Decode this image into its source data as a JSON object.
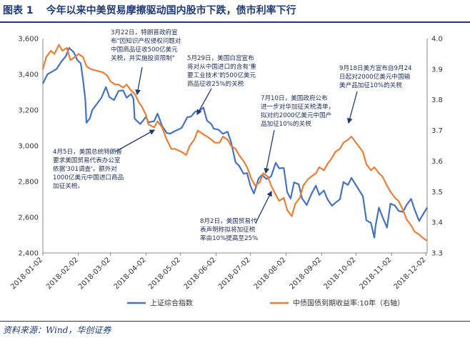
{
  "header": {
    "figure_label": "图表 1",
    "title": "今年以来中美贸易摩擦驱动国内股市下跌，债市利率下行"
  },
  "footer": {
    "source": "资料来源：Wind，华创证券"
  },
  "colors": {
    "stock": "#4472c4",
    "bond": "#ed7d31",
    "title": "#1f3a75",
    "grid": "#d9d9d9"
  },
  "chart_data": {
    "type": "line",
    "title": "",
    "xlabel": "",
    "ylabel_left": "",
    "ylabel_right": "",
    "x_ticks": [
      "2018-01-02",
      "2018-02-02",
      "2018-03-02",
      "2018-04-02",
      "2018-05-02",
      "2018-06-02",
      "2018-07-02",
      "2018-08-02",
      "2018-09-02",
      "2018-10-02",
      "2018-11-02",
      "2018-12-02"
    ],
    "y_left_ticks": [
      "2,400",
      "2,600",
      "2,800",
      "3,000",
      "3,200",
      "3,400",
      "3,600"
    ],
    "y_right_ticks": [
      "3.3",
      "3.4",
      "3.5",
      "3.6",
      "3.7",
      "3.8",
      "3.9",
      "4.0"
    ],
    "ylim_left": [
      2400,
      3600
    ],
    "ylim_right": [
      3.3,
      4.0
    ],
    "grid": false,
    "legend_position": "bottom",
    "series": [
      {
        "name": "上证综合指数",
        "axis": "left",
        "points": [
          [
            "2018-01-02",
            3348
          ],
          [
            "2018-01-06",
            3400
          ],
          [
            "2018-01-10",
            3415
          ],
          [
            "2018-01-14",
            3430
          ],
          [
            "2018-01-18",
            3470
          ],
          [
            "2018-01-22",
            3501
          ],
          [
            "2018-01-25",
            3548
          ],
          [
            "2018-01-29",
            3523
          ],
          [
            "2018-02-01",
            3480
          ],
          [
            "2018-02-04",
            3462
          ],
          [
            "2018-02-06",
            3370
          ],
          [
            "2018-02-08",
            3262
          ],
          [
            "2018-02-09",
            3129
          ],
          [
            "2018-02-12",
            3154
          ],
          [
            "2018-02-14",
            3199
          ],
          [
            "2018-02-22",
            3268
          ],
          [
            "2018-02-26",
            3329
          ],
          [
            "2018-03-01",
            3273
          ],
          [
            "2018-03-05",
            3256
          ],
          [
            "2018-03-09",
            3307
          ],
          [
            "2018-03-13",
            3310
          ],
          [
            "2018-03-16",
            3269
          ],
          [
            "2018-03-20",
            3290
          ],
          [
            "2018-03-22",
            3263
          ],
          [
            "2018-03-23",
            3152
          ],
          [
            "2018-03-26",
            3133
          ],
          [
            "2018-03-28",
            3122
          ],
          [
            "2018-04-02",
            3163
          ],
          [
            "2018-04-04",
            3131
          ],
          [
            "2018-04-09",
            3138
          ],
          [
            "2018-04-12",
            3180
          ],
          [
            "2018-04-16",
            3110
          ],
          [
            "2018-04-20",
            3072
          ],
          [
            "2018-04-23",
            3068
          ],
          [
            "2018-04-27",
            3082
          ],
          [
            "2018-05-03",
            3100
          ],
          [
            "2018-05-08",
            3161
          ],
          [
            "2018-05-11",
            3163
          ],
          [
            "2018-05-15",
            3192
          ],
          [
            "2018-05-18",
            3193
          ],
          [
            "2018-05-22",
            3214
          ],
          [
            "2018-05-25",
            3141
          ],
          [
            "2018-05-29",
            3120
          ],
          [
            "2018-05-31",
            3095
          ],
          [
            "2018-06-04",
            3091
          ],
          [
            "2018-06-08",
            3067
          ],
          [
            "2018-06-12",
            3079
          ],
          [
            "2018-06-15",
            3022
          ],
          [
            "2018-06-19",
            2907
          ],
          [
            "2018-06-22",
            2889
          ],
          [
            "2018-06-26",
            2844
          ],
          [
            "2018-06-29",
            2847
          ],
          [
            "2018-07-02",
            2775
          ],
          [
            "2018-07-05",
            2733
          ],
          [
            "2018-07-09",
            2815
          ],
          [
            "2018-07-12",
            2837
          ],
          [
            "2018-07-16",
            2814
          ],
          [
            "2018-07-20",
            2829
          ],
          [
            "2018-07-24",
            2905
          ],
          [
            "2018-07-27",
            2874
          ],
          [
            "2018-07-31",
            2876
          ],
          [
            "2018-08-03",
            2740
          ],
          [
            "2018-08-06",
            2705
          ],
          [
            "2018-08-09",
            2795
          ],
          [
            "2018-08-13",
            2785
          ],
          [
            "2018-08-16",
            2706
          ],
          [
            "2018-08-20",
            2668
          ],
          [
            "2018-08-24",
            2729
          ],
          [
            "2018-08-28",
            2777
          ],
          [
            "2018-08-31",
            2725
          ],
          [
            "2018-09-04",
            2750
          ],
          [
            "2018-09-07",
            2702
          ],
          [
            "2018-09-11",
            2664
          ],
          [
            "2018-09-14",
            2681
          ],
          [
            "2018-09-18",
            2700
          ],
          [
            "2018-09-21",
            2797
          ],
          [
            "2018-09-25",
            2781
          ],
          [
            "2018-09-28",
            2821
          ],
          [
            "2018-10-08",
            2717
          ],
          [
            "2018-10-11",
            2583
          ],
          [
            "2018-10-15",
            2568
          ],
          [
            "2018-10-18",
            2486
          ],
          [
            "2018-10-19",
            2550
          ],
          [
            "2018-10-22",
            2654
          ],
          [
            "2018-10-25",
            2603
          ],
          [
            "2018-10-29",
            2542
          ],
          [
            "2018-11-01",
            2676
          ],
          [
            "2018-11-05",
            2665
          ],
          [
            "2018-11-08",
            2636
          ],
          [
            "2018-11-12",
            2630
          ],
          [
            "2018-11-15",
            2668
          ],
          [
            "2018-11-19",
            2703
          ],
          [
            "2018-11-22",
            2645
          ],
          [
            "2018-11-26",
            2579
          ],
          [
            "2018-11-28",
            2601
          ],
          [
            "2018-12-03",
            2654
          ]
        ]
      },
      {
        "name": "中债国债到期收益率:10年（右轴）",
        "axis": "right",
        "points": [
          [
            "2018-01-02",
            3.9
          ],
          [
            "2018-01-05",
            3.94
          ],
          [
            "2018-01-09",
            3.96
          ],
          [
            "2018-01-12",
            3.95
          ],
          [
            "2018-01-16",
            3.98
          ],
          [
            "2018-01-19",
            3.96
          ],
          [
            "2018-01-23",
            3.97
          ],
          [
            "2018-01-26",
            3.93
          ],
          [
            "2018-01-30",
            3.94
          ],
          [
            "2018-02-02",
            3.95
          ],
          [
            "2018-02-06",
            3.94
          ],
          [
            "2018-02-09",
            3.91
          ],
          [
            "2018-02-13",
            3.9
          ],
          [
            "2018-02-23",
            3.89
          ],
          [
            "2018-02-27",
            3.88
          ],
          [
            "2018-03-02",
            3.86
          ],
          [
            "2018-03-06",
            3.85
          ],
          [
            "2018-03-09",
            3.85
          ],
          [
            "2018-03-13",
            3.84
          ],
          [
            "2018-03-16",
            3.85
          ],
          [
            "2018-03-20",
            3.83
          ],
          [
            "2018-03-23",
            3.82
          ],
          [
            "2018-03-27",
            3.79
          ],
          [
            "2018-03-29",
            3.78
          ],
          [
            "2018-04-02",
            3.75
          ],
          [
            "2018-04-04",
            3.72
          ],
          [
            "2018-04-09",
            3.71
          ],
          [
            "2018-04-12",
            3.73
          ],
          [
            "2018-04-16",
            3.71
          ],
          [
            "2018-04-18",
            3.69
          ],
          [
            "2018-04-20",
            3.67
          ],
          [
            "2018-04-24",
            3.64
          ],
          [
            "2018-04-27",
            3.64
          ],
          [
            "2018-05-03",
            3.63
          ],
          [
            "2018-05-07",
            3.62
          ],
          [
            "2018-05-10",
            3.65
          ],
          [
            "2018-05-14",
            3.67
          ],
          [
            "2018-05-17",
            3.7
          ],
          [
            "2018-05-21",
            3.69
          ],
          [
            "2018-05-25",
            3.68
          ],
          [
            "2018-05-29",
            3.67
          ],
          [
            "2018-06-01",
            3.66
          ],
          [
            "2018-06-05",
            3.66
          ],
          [
            "2018-06-08",
            3.68
          ],
          [
            "2018-06-12",
            3.67
          ],
          [
            "2018-06-15",
            3.65
          ],
          [
            "2018-06-19",
            3.64
          ],
          [
            "2018-06-22",
            3.62
          ],
          [
            "2018-06-26",
            3.6
          ],
          [
            "2018-06-29",
            3.58
          ],
          [
            "2018-07-03",
            3.54
          ],
          [
            "2018-07-06",
            3.52
          ],
          [
            "2018-07-10",
            3.53
          ],
          [
            "2018-07-13",
            3.56
          ],
          [
            "2018-07-17",
            3.55
          ],
          [
            "2018-07-20",
            3.52
          ],
          [
            "2018-07-24",
            3.49
          ],
          [
            "2018-07-27",
            3.47
          ],
          [
            "2018-07-31",
            3.48
          ],
          [
            "2018-08-03",
            3.44
          ],
          [
            "2018-08-07",
            3.42
          ],
          [
            "2018-08-10",
            3.46
          ],
          [
            "2018-08-14",
            3.48
          ],
          [
            "2018-08-17",
            3.52
          ],
          [
            "2018-08-21",
            3.54
          ],
          [
            "2018-08-24",
            3.55
          ],
          [
            "2018-08-28",
            3.56
          ],
          [
            "2018-08-31",
            3.58
          ],
          [
            "2018-09-04",
            3.57
          ],
          [
            "2018-09-07",
            3.59
          ],
          [
            "2018-09-11",
            3.61
          ],
          [
            "2018-09-14",
            3.63
          ],
          [
            "2018-09-18",
            3.64
          ],
          [
            "2018-09-21",
            3.66
          ],
          [
            "2018-09-25",
            3.67
          ],
          [
            "2018-09-28",
            3.68
          ],
          [
            "2018-10-08",
            3.63
          ],
          [
            "2018-10-11",
            3.59
          ],
          [
            "2018-10-15",
            3.57
          ],
          [
            "2018-10-18",
            3.58
          ],
          [
            "2018-10-22",
            3.56
          ],
          [
            "2018-10-25",
            3.55
          ],
          [
            "2018-10-29",
            3.52
          ],
          [
            "2018-11-01",
            3.5
          ],
          [
            "2018-11-05",
            3.48
          ],
          [
            "2018-11-08",
            3.47
          ],
          [
            "2018-11-12",
            3.44
          ],
          [
            "2018-11-15",
            3.41
          ],
          [
            "2018-11-19",
            3.39
          ],
          [
            "2018-11-22",
            3.37
          ],
          [
            "2018-11-26",
            3.36
          ],
          [
            "2018-11-29",
            3.35
          ],
          [
            "2018-12-03",
            3.34
          ]
        ]
      }
    ],
    "annotations": [
      {
        "name": "annotation-mar22",
        "lines": [
          "3月22日，特朗普政府宣",
          "布\"因知识产权侵权问题对",
          "中国商品征收500亿美元",
          "关税，并实施投资限制\""
        ]
      },
      {
        "name": "annotation-apr5",
        "lines": [
          "4月5日，美国总统特朗普",
          "要求美国贸易代表办公室",
          "依据'301调查'，额外对",
          "1000亿美元中国进口商品",
          "加征关税。"
        ]
      },
      {
        "name": "annotation-may29",
        "lines": [
          "5月29日，美国白宫宣布",
          "将对从中国进口的含有'重",
          "要工业技术'的500亿美元",
          "商品征收25%的关税"
        ]
      },
      {
        "name": "annotation-jul10",
        "lines": [
          "7月10日，美国政府公布",
          "进一步对华加征关税清单，",
          "拟对约2000亿美元中国产",
          "品加征10%的关税"
        ]
      },
      {
        "name": "annotation-aug2",
        "lines": [
          "8月2日，美国贸易代",
          "表声明称拟将加征税",
          "率由10%提高至25%"
        ]
      },
      {
        "name": "annotation-sep18",
        "lines": [
          "9月18日美方宣布自9月24",
          "日起对2000亿美元中国输",
          "美产品加征10%的关税"
        ]
      }
    ]
  }
}
